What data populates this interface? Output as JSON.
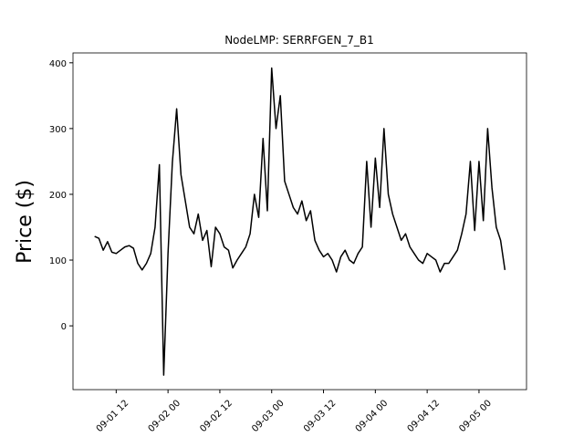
{
  "chart_data": {
    "type": "line",
    "title": "NodeLMP: SERRFGEN_7_B1",
    "y_label": "Price ($)",
    "x": [
      "09-01 07",
      "09-01 08",
      "09-01 09",
      "09-01 10",
      "09-01 11",
      "09-01 12",
      "09-01 13",
      "09-01 14",
      "09-01 15",
      "09-01 16",
      "09-01 17",
      "09-01 18",
      "09-01 19",
      "09-01 20",
      "09-01 21",
      "09-01 22",
      "09-01 23",
      "09-02 00",
      "09-02 01",
      "09-02 02",
      "09-02 03",
      "09-02 04",
      "09-02 05",
      "09-02 06",
      "09-02 07",
      "09-02 08",
      "09-02 09",
      "09-02 10",
      "09-02 11",
      "09-02 12",
      "09-02 13",
      "09-02 14",
      "09-02 15",
      "09-02 16",
      "09-02 17",
      "09-02 18",
      "09-02 19",
      "09-02 20",
      "09-02 21",
      "09-02 22",
      "09-02 23",
      "09-03 00",
      "09-03 01",
      "09-03 02",
      "09-03 03",
      "09-03 04",
      "09-03 05",
      "09-03 06",
      "09-03 07",
      "09-03 08",
      "09-03 09",
      "09-03 10",
      "09-03 11",
      "09-03 12",
      "09-03 13",
      "09-03 14",
      "09-03 15",
      "09-03 16",
      "09-03 17",
      "09-03 18",
      "09-03 19",
      "09-03 20",
      "09-03 21",
      "09-03 22",
      "09-03 23",
      "09-04 00",
      "09-04 01",
      "09-04 02",
      "09-04 03",
      "09-04 04",
      "09-04 05",
      "09-04 06",
      "09-04 07",
      "09-04 08",
      "09-04 09",
      "09-04 10",
      "09-04 11",
      "09-04 12",
      "09-04 13",
      "09-04 14",
      "09-04 15",
      "09-04 16",
      "09-04 17",
      "09-04 18",
      "09-04 19",
      "09-04 20",
      "09-04 21",
      "09-04 22",
      "09-04 23",
      "09-05 00",
      "09-05 01",
      "09-05 02",
      "09-05 03",
      "09-05 04",
      "09-05 05",
      "09-05 06"
    ],
    "series": [
      {
        "color": "#000000",
        "values": [
          136,
          133,
          115,
          128,
          112,
          110,
          115,
          120,
          122,
          118,
          95,
          85,
          95,
          110,
          150,
          245,
          -75,
          110,
          248,
          330,
          230,
          190,
          150,
          140,
          170,
          130,
          145,
          90,
          150,
          140,
          120,
          115,
          88,
          100,
          110,
          120,
          140,
          200,
          165,
          285,
          175,
          392,
          300,
          350,
          220,
          200,
          180,
          170,
          190,
          160,
          175,
          130,
          115,
          105,
          110,
          100,
          82,
          105,
          115,
          100,
          95,
          110,
          120,
          250,
          150,
          255,
          180,
          300,
          200,
          170,
          150,
          130,
          140,
          120,
          110,
          100,
          95,
          110,
          105,
          100,
          82,
          95,
          95,
          105,
          115,
          140,
          170,
          250,
          145,
          250,
          160,
          300,
          210,
          150,
          130,
          85
        ]
      }
    ],
    "xlim": [
      "09-01 02",
      "09-05 11"
    ],
    "ylim": [
      -97,
      415
    ],
    "xticks": [
      "09-01 12",
      "09-02 00",
      "09-02 12",
      "09-03 00",
      "09-03 12",
      "09-04 00",
      "09-04 12",
      "09-05 00"
    ],
    "yticks": [
      0,
      100,
      200,
      300,
      400
    ]
  }
}
